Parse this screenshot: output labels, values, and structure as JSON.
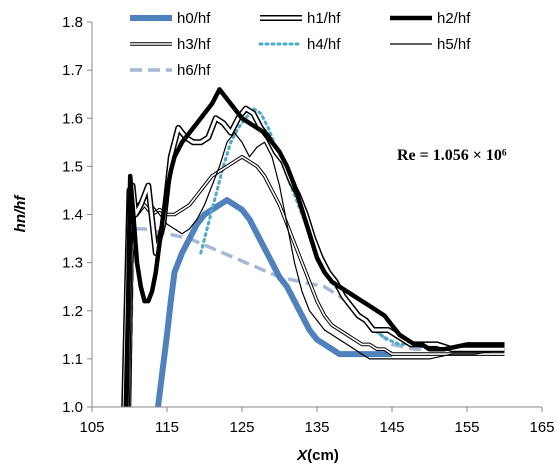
{
  "chart_data": {
    "type": "line",
    "title": "",
    "xlabel_prefix": "X",
    "xlabel_suffix": "(cm)",
    "ylabel": "hn/hf",
    "annotation": "Re = 1.056 × 10⁶",
    "xlim": [
      105,
      165
    ],
    "ylim": [
      1.0,
      1.8
    ],
    "xticks": [
      "105",
      "115",
      "125",
      "135",
      "145",
      "155",
      "165"
    ],
    "yticks": [
      "1.0",
      "1.1",
      "1.2",
      "1.3",
      "1.4",
      "1.5",
      "1.6",
      "1.7",
      "1.8"
    ],
    "grid": false,
    "legend_position": "top",
    "series": [
      {
        "name": "h0/hf",
        "style": "thick-blue",
        "color": "#4f81bd",
        "x": [
          113.8,
          114.2,
          114.6,
          115.0,
          115.5,
          116,
          117,
          118,
          119,
          120,
          121,
          122,
          123,
          124,
          125,
          126,
          127,
          128,
          129,
          130,
          131,
          132,
          133,
          134,
          135,
          136,
          137,
          138,
          139,
          140,
          141,
          142,
          143,
          144,
          145
        ],
        "values": [
          1.0,
          1.05,
          1.1,
          1.15,
          1.22,
          1.28,
          1.32,
          1.35,
          1.38,
          1.4,
          1.41,
          1.42,
          1.43,
          1.42,
          1.41,
          1.39,
          1.36,
          1.33,
          1.3,
          1.27,
          1.25,
          1.22,
          1.19,
          1.16,
          1.14,
          1.13,
          1.12,
          1.11,
          1.11,
          1.11,
          1.11,
          1.11,
          1.11,
          1.11,
          1.11
        ]
      },
      {
        "name": "h1/hf",
        "style": "double",
        "color": "#000000",
        "x": [
          109.3,
          109.6,
          110.0,
          110.4,
          110.8,
          111.5,
          112.5,
          113.5,
          114.5,
          115.5,
          116.5,
          117.5,
          118.5,
          119.5,
          120.5,
          121.5,
          122.5,
          123.5,
          124.5,
          125.5,
          126.5,
          127.5,
          128.5,
          129.5,
          130.5,
          131.5,
          132.5,
          133.5,
          134.5,
          135.5,
          136.5,
          137.5,
          138.5,
          139.5,
          140.5,
          141.5,
          142.5,
          143.5,
          144.5,
          145.5,
          146.5,
          147.5,
          148.5,
          149.5,
          151,
          153,
          155,
          157,
          159,
          160
        ],
        "values": [
          1.0,
          1.2,
          1.45,
          1.46,
          1.4,
          1.42,
          1.46,
          1.32,
          1.38,
          1.52,
          1.58,
          1.56,
          1.55,
          1.55,
          1.56,
          1.6,
          1.59,
          1.57,
          1.6,
          1.62,
          1.61,
          1.58,
          1.56,
          1.53,
          1.51,
          1.47,
          1.44,
          1.4,
          1.35,
          1.31,
          1.28,
          1.26,
          1.23,
          1.21,
          1.19,
          1.18,
          1.16,
          1.16,
          1.16,
          1.15,
          1.14,
          1.13,
          1.13,
          1.13,
          1.13,
          1.12,
          1.12,
          1.12,
          1.12,
          1.12
        ]
      },
      {
        "name": "h2/hf",
        "style": "thick-black",
        "color": "#000000",
        "x": [
          109.5,
          109.8,
          110.1,
          110.5,
          111.0,
          111.5,
          112.0,
          112.5,
          113.0,
          113.5,
          114.0,
          114.5,
          115.0,
          115.5,
          116.0,
          117.0,
          118.0,
          119.0,
          120.0,
          121.0,
          122.0,
          123.0,
          124.0,
          125.0,
          126.0,
          127.0,
          128.0,
          129.0,
          130.0,
          131.0,
          132.0,
          133.0,
          134.0,
          135.0,
          136.0,
          137.0,
          138.0,
          139.0,
          140.0,
          141.0,
          142.0,
          143.0,
          144.0,
          145.0,
          146.0,
          147.0,
          148.0,
          149.0,
          150.0,
          152.0,
          155.0,
          158.0,
          160.0
        ],
        "values": [
          1.0,
          1.2,
          1.48,
          1.4,
          1.3,
          1.25,
          1.22,
          1.22,
          1.24,
          1.28,
          1.34,
          1.4,
          1.45,
          1.49,
          1.52,
          1.55,
          1.57,
          1.59,
          1.61,
          1.63,
          1.66,
          1.64,
          1.62,
          1.6,
          1.59,
          1.58,
          1.57,
          1.55,
          1.53,
          1.5,
          1.46,
          1.41,
          1.36,
          1.31,
          1.28,
          1.26,
          1.25,
          1.24,
          1.23,
          1.22,
          1.21,
          1.2,
          1.19,
          1.17,
          1.15,
          1.14,
          1.13,
          1.13,
          1.12,
          1.12,
          1.13,
          1.13,
          1.13
        ]
      },
      {
        "name": "h3/hf",
        "style": "double-thin",
        "color": "#000000",
        "x": [
          110.0,
          110.3,
          110.7,
          111.0,
          112.0,
          113.0,
          114.0,
          115.0,
          116.0,
          117.0,
          118.0,
          119.0,
          120.0,
          121.0,
          122.0,
          123.0,
          124.0,
          125.0,
          126.0,
          127.0,
          128.0,
          129.0,
          130.0,
          131.0,
          132.0,
          133.0,
          134.0,
          135.0,
          136.0,
          137.0,
          138.0,
          139.0,
          140.0,
          141.0,
          142.0,
          143.0,
          144.0,
          145.0,
          147.0,
          150.0,
          153.0,
          156.0,
          160.0
        ],
        "values": [
          1.0,
          1.3,
          1.42,
          1.4,
          1.42,
          1.4,
          1.41,
          1.4,
          1.4,
          1.41,
          1.42,
          1.44,
          1.46,
          1.48,
          1.49,
          1.5,
          1.51,
          1.52,
          1.51,
          1.5,
          1.48,
          1.45,
          1.42,
          1.38,
          1.34,
          1.3,
          1.26,
          1.22,
          1.19,
          1.17,
          1.16,
          1.15,
          1.14,
          1.13,
          1.13,
          1.12,
          1.12,
          1.11,
          1.11,
          1.11,
          1.11,
          1.11,
          1.11
        ]
      },
      {
        "name": "h4/hf",
        "style": "dotted-teal",
        "color": "#4bacc6",
        "x": [
          119.5,
          120.5,
          121.5,
          122.5,
          123.5,
          124.5,
          125.5,
          126.5,
          127.5,
          128.5,
          129.5,
          130.5,
          131.5,
          132.5,
          133.5,
          134.5,
          135.5,
          136.5,
          137.5,
          138.5,
          139.5,
          140.5,
          141.5,
          142.5,
          143.5,
          144.5,
          146,
          148,
          150,
          152,
          154,
          156,
          158,
          160
        ],
        "values": [
          1.32,
          1.38,
          1.44,
          1.5,
          1.55,
          1.58,
          1.6,
          1.62,
          1.61,
          1.58,
          1.54,
          1.5,
          1.46,
          1.42,
          1.38,
          1.34,
          1.3,
          1.27,
          1.25,
          1.23,
          1.21,
          1.19,
          1.18,
          1.16,
          1.15,
          1.14,
          1.13,
          1.13,
          1.12,
          1.12,
          1.12,
          1.13,
          1.12,
          1.12
        ]
      },
      {
        "name": "h5/hf",
        "style": "thin-black",
        "color": "#000000",
        "x": [
          110.0,
          110.3,
          110.6,
          111.0,
          112.0,
          113.0,
          114.0,
          115.0,
          116.0,
          117.0,
          118.0,
          119.0,
          120.0,
          121.0,
          122.0,
          123.0,
          124.0,
          125.0,
          126.0,
          127.0,
          128.0,
          129.0,
          130.0,
          131.0,
          132.0,
          133.0,
          134.0,
          135.0,
          136.0,
          137.0,
          138.0,
          139.0,
          140.0,
          141.0,
          142.0,
          143.0,
          144.0,
          145.0,
          147.0,
          150.0,
          153.0,
          156.0,
          160.0
        ],
        "values": [
          1.0,
          1.3,
          1.45,
          1.42,
          1.44,
          1.42,
          1.4,
          1.38,
          1.37,
          1.36,
          1.37,
          1.39,
          1.42,
          1.46,
          1.5,
          1.55,
          1.57,
          1.55,
          1.52,
          1.54,
          1.55,
          1.52,
          1.46,
          1.38,
          1.3,
          1.24,
          1.2,
          1.18,
          1.16,
          1.15,
          1.14,
          1.13,
          1.12,
          1.11,
          1.1,
          1.1,
          1.1,
          1.1,
          1.1,
          1.1,
          1.11,
          1.11,
          1.12
        ]
      },
      {
        "name": "h6/hf",
        "style": "dashed-lightblue",
        "color": "#a5b8d7",
        "x": [
          110.0,
          110.5,
          112.0,
          115.0,
          118.0,
          121.0,
          124.0,
          127.0,
          130.0,
          133.0,
          136.0,
          139.0,
          142.0,
          145.0,
          148.0,
          151.0,
          154.0,
          157.0,
          160.0
        ],
        "values": [
          1.0,
          1.37,
          1.37,
          1.36,
          1.35,
          1.33,
          1.31,
          1.29,
          1.27,
          1.26,
          1.25,
          1.22,
          1.17,
          1.13,
          1.12,
          1.12,
          1.12,
          1.12,
          1.12
        ]
      }
    ]
  }
}
